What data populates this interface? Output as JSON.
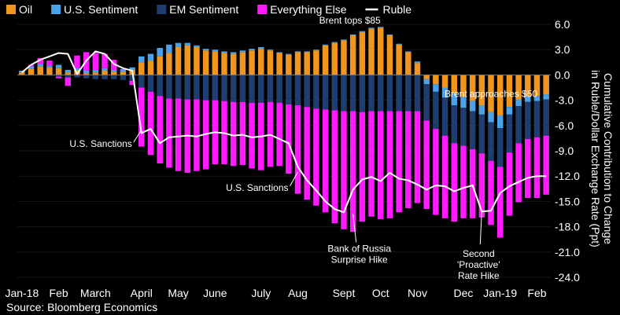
{
  "chart_data": {
    "type": "bar",
    "stacked": true,
    "source": "Source: Bloomberg Economics",
    "ylabel": "Cumulative Contribution to Change in Ruble/Dollar Exchange Rate (Ppt)",
    "ylim": [
      -24,
      6
    ],
    "yticks": [
      6.0,
      3.0,
      0.0,
      -3.0,
      -6.0,
      -9.0,
      -12.0,
      -15.0,
      -18.0,
      -21.0,
      -24.0
    ],
    "ytick_labels": [
      "6.0",
      "3.0",
      "0.0",
      "-3.0",
      "-6.0",
      "-9.0",
      "-12.0",
      "-15.0",
      "-18.0",
      "-21.0",
      "-24.0"
    ],
    "xtick_labels": [
      {
        "label": "Jan-18",
        "week": 0
      },
      {
        "label": "Feb",
        "week": 4
      },
      {
        "label": "March",
        "week": 8
      },
      {
        "label": "April",
        "week": 13
      },
      {
        "label": "May",
        "week": 17
      },
      {
        "label": "June",
        "week": 21
      },
      {
        "label": "July",
        "week": 26
      },
      {
        "label": "Aug",
        "week": 30
      },
      {
        "label": "Sept",
        "week": 35
      },
      {
        "label": "Oct",
        "week": 39
      },
      {
        "label": "Nov",
        "week": 43
      },
      {
        "label": "Dec",
        "week": 48
      },
      {
        "label": "Jan-19",
        "week": 52
      },
      {
        "label": "Feb",
        "week": 56
      }
    ],
    "legend": [
      {
        "name": "Oil",
        "color": "#f0961e",
        "kind": "box"
      },
      {
        "name": "U.S. Sentiment",
        "color": "#4aa3e8",
        "kind": "box"
      },
      {
        "name": "EM Sentiment",
        "color": "#1f3d6e",
        "kind": "box"
      },
      {
        "name": "Everything Else",
        "color": "#ff1aff",
        "kind": "box"
      },
      {
        "name": "Ruble",
        "color": "#ffffff",
        "kind": "line"
      }
    ],
    "series": [
      {
        "name": "Oil",
        "color": "#f0961e",
        "values": [
          0.3,
          0.7,
          1.0,
          0.9,
          0.8,
          0.3,
          0.6,
          0.2,
          0.3,
          0.5,
          0.4,
          0.4,
          0.6,
          1.5,
          1.7,
          2.2,
          2.6,
          3.3,
          3.5,
          3.3,
          2.9,
          2.8,
          2.6,
          2.5,
          2.7,
          2.9,
          3.1,
          2.9,
          2.6,
          2.4,
          2.7,
          2.7,
          2.9,
          3.5,
          3.8,
          4.1,
          4.7,
          5.1,
          5.5,
          5.6,
          4.7,
          3.6,
          2.7,
          1.4,
          -0.5,
          -1.1,
          -1.5,
          -2.2,
          -2.6,
          -3.1,
          -3.6,
          -4.4,
          -4.8,
          -3.8,
          -2.9,
          -2.5,
          -2.5,
          -2.3
        ]
      },
      {
        "name": "U.S. Sentiment",
        "color": "#4aa3e8",
        "values": [
          0.2,
          0.3,
          0.3,
          0.2,
          0.4,
          0.3,
          0.2,
          0.3,
          0.3,
          0.3,
          0.2,
          0.3,
          0.3,
          0.7,
          0.8,
          1.0,
          1.0,
          0.5,
          0.3,
          0.2,
          0.2,
          0.2,
          0.2,
          0.2,
          0.2,
          0.2,
          0.2,
          0.1,
          0.1,
          0.1,
          0.1,
          0.1,
          0.1,
          0.1,
          0.1,
          0.1,
          0.1,
          0.1,
          0.1,
          0.1,
          0.1,
          0.1,
          0.1,
          0.2,
          -0.6,
          -0.9,
          -1.2,
          -1.4,
          -1.3,
          -1.2,
          -1.1,
          -1.2,
          -1.5,
          -0.9,
          -0.8,
          -0.7,
          -0.6,
          -0.6
        ]
      },
      {
        "name": "EM Sentiment",
        "color": "#1f3d6e",
        "values": [
          0.0,
          0.0,
          0.0,
          -0.1,
          -0.2,
          -0.3,
          -0.3,
          -0.4,
          -0.5,
          -0.5,
          -0.5,
          -0.6,
          -0.7,
          -1.5,
          -2.0,
          -2.5,
          -2.8,
          -2.8,
          -2.9,
          -2.9,
          -3.0,
          -3.0,
          -3.1,
          -3.2,
          -3.2,
          -3.3,
          -3.3,
          -3.2,
          -3.3,
          -3.5,
          -3.6,
          -3.8,
          -4.0,
          -4.1,
          -4.2,
          -4.3,
          -4.3,
          -4.4,
          -4.3,
          -4.3,
          -4.3,
          -4.3,
          -4.3,
          -4.3,
          -4.3,
          -4.4,
          -4.5,
          -4.5,
          -4.5,
          -4.5,
          -4.6,
          -4.6,
          -4.6,
          -4.5,
          -4.4,
          -4.4,
          -4.3,
          -4.3
        ]
      },
      {
        "name": "Everything Else",
        "color": "#ff1aff",
        "values": [
          0.0,
          0.2,
          0.7,
          0.6,
          -0.2,
          -1.0,
          1.5,
          2.2,
          2.0,
          1.7,
          1.2,
          0.0,
          -0.5,
          -7.0,
          -7.5,
          -8.0,
          -8.2,
          -8.6,
          -8.7,
          -8.5,
          -8.2,
          -7.6,
          -7.5,
          -7.6,
          -7.5,
          -7.8,
          -8.0,
          -7.7,
          -7.5,
          -8.2,
          -10.5,
          -11.0,
          -11.5,
          -12.2,
          -13.4,
          -14.0,
          -14.3,
          -13.0,
          -12.5,
          -12.8,
          -12.7,
          -12.0,
          -11.5,
          -10.9,
          -10.5,
          -10.2,
          -9.8,
          -9.3,
          -8.6,
          -8.2,
          -7.6,
          -7.6,
          -8.4,
          -7.5,
          -7.0,
          -7.0,
          -7.2,
          -7.0
        ]
      },
      {
        "name": "Ruble",
        "color": "#ffffff",
        "kind": "line",
        "values": [
          0.3,
          1.2,
          1.8,
          2.2,
          2.6,
          2.5,
          0.1,
          1.7,
          2.8,
          2.5,
          1.3,
          0.8,
          0.5,
          -6.9,
          -6.4,
          -8.1,
          -7.4,
          -7.3,
          -7.2,
          -7.3,
          -7.0,
          -6.8,
          -6.9,
          -7.2,
          -7.1,
          -7.4,
          -7.3,
          -7.1,
          -7.6,
          -8.1,
          -10.9,
          -12.5,
          -13.7,
          -15.0,
          -15.9,
          -16.3,
          -13.6,
          -12.4,
          -12.1,
          -12.6,
          -11.6,
          -12.3,
          -12.5,
          -13.0,
          -13.6,
          -13.1,
          -13.2,
          -13.8,
          -13.4,
          -13.1,
          -16.2,
          -16.1,
          -14.0,
          -13.2,
          -12.7,
          -12.2,
          -12.0,
          -12.0
        ]
      }
    ],
    "annotations": [
      {
        "lines": [
          "Brent tops $85"
        ],
        "week": 39,
        "value": 5.8,
        "text_anchor": "end"
      },
      {
        "lines": [
          "Brent approaches $50"
        ],
        "week": 51,
        "value": -4.5,
        "text_anchor": "middle"
      },
      {
        "lines": [
          "U.S. Sanctions"
        ],
        "week": 13,
        "value": -6.5,
        "text_anchor": "end"
      },
      {
        "lines": [
          "U.S. Sanctions"
        ],
        "week": 30,
        "value": -11.5,
        "text_anchor": "end"
      },
      {
        "lines": [
          "Bank of Russia",
          "Surprise Hike"
        ],
        "week": 36,
        "value": -16.5,
        "text_anchor": "middle"
      },
      {
        "lines": [
          "Second",
          "'Proactive'",
          "Rate Hike"
        ],
        "week": 50,
        "value": -16.0,
        "text_anchor": "middle"
      }
    ]
  }
}
